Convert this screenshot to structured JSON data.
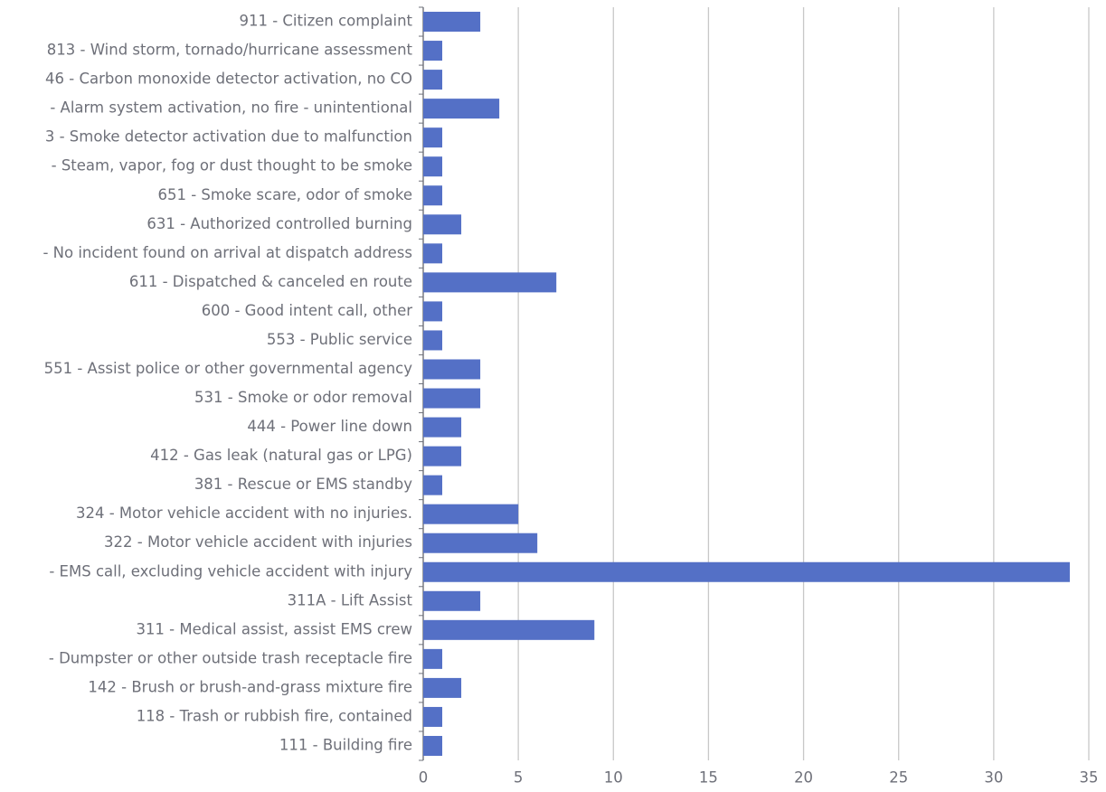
{
  "chart_data": {
    "type": "bar",
    "orientation": "horizontal",
    "categories": [
      "911 - Citizen complaint",
      "813 - Wind storm, tornado/hurricane assessment",
      "46 - Carbon monoxide detector activation, no CO",
      "- Alarm system activation, no fire - unintentional",
      "3 - Smoke detector activation due to malfunction",
      "- Steam, vapor, fog or dust thought to be smoke",
      "651 - Smoke scare, odor of smoke",
      "631 - Authorized controlled burning",
      "- No incident found on arrival at dispatch address",
      "611 - Dispatched & canceled en route",
      "600 - Good intent call, other",
      "553 - Public service",
      "551 - Assist police or other governmental agency",
      "531 - Smoke or odor removal",
      "444 - Power line down",
      "412 - Gas leak (natural gas or LPG)",
      "381 - Rescue or EMS standby",
      "324 - Motor vehicle accident with no injuries.",
      "322 - Motor vehicle accident with injuries",
      "- EMS call, excluding vehicle accident with injury",
      "311A - Lift Assist",
      "311 - Medical assist, assist EMS crew",
      "- Dumpster or other outside trash receptacle fire",
      "142 - Brush or brush-and-grass mixture fire",
      "118 - Trash or rubbish fire, contained",
      "111 - Building fire"
    ],
    "values": [
      3,
      1,
      1,
      4,
      1,
      1,
      1,
      2,
      1,
      7,
      1,
      1,
      3,
      3,
      2,
      2,
      1,
      5,
      6,
      34,
      3,
      9,
      1,
      2,
      1,
      1
    ],
    "color": "#5470c6",
    "xlim": [
      0,
      35
    ],
    "xticks": [
      0,
      5,
      10,
      15,
      20,
      25,
      30,
      35
    ],
    "grid": true
  }
}
